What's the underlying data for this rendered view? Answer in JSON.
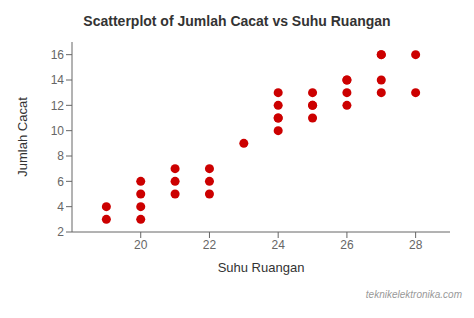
{
  "chart_data": {
    "type": "scatter",
    "title": "Scatterplot of Jumlah Cacat vs Suhu Ruangan",
    "xlabel": "Suhu Ruangan",
    "ylabel": "Jumlah Cacat",
    "x": [
      19,
      19,
      20,
      20,
      20,
      20,
      21,
      21,
      21,
      22,
      22,
      22,
      23,
      24,
      24,
      24,
      24,
      24,
      25,
      25,
      25,
      25,
      26,
      26,
      26,
      26,
      27,
      27,
      27,
      27,
      28,
      28
    ],
    "y": [
      3,
      4,
      3,
      4,
      5,
      6,
      5,
      6,
      7,
      5,
      6,
      7,
      9,
      10,
      11,
      11,
      12,
      13,
      11,
      12,
      12,
      13,
      12,
      13,
      14,
      14,
      13,
      14,
      16,
      16,
      13,
      16
    ],
    "color": "#cc0000",
    "xlim": [
      18.0,
      29.0
    ],
    "ylim": [
      2,
      17
    ],
    "xticks": [
      20,
      22,
      24,
      26,
      28
    ],
    "yticks": [
      2,
      4,
      6,
      8,
      10,
      12,
      14,
      16
    ],
    "grid": false,
    "annotations": [
      "teknikelektronika.com"
    ]
  }
}
